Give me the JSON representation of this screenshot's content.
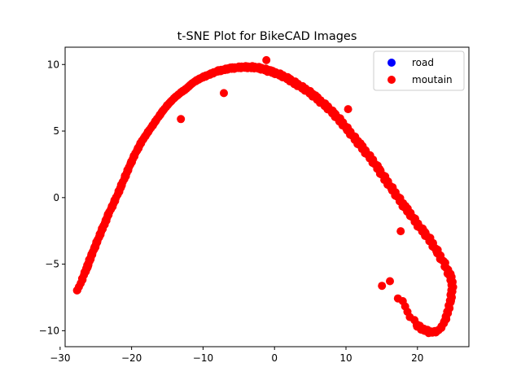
{
  "chart_data": {
    "type": "scatter",
    "title": "t-SNE Plot for BikeCAD Images",
    "xlabel": "",
    "ylabel": "",
    "xlim": [
      -29.3,
      27.2
    ],
    "ylim": [
      -11.2,
      11.3
    ],
    "xticks": [
      -30,
      -20,
      -10,
      0,
      10,
      20
    ],
    "xtick_labels": [
      "−30",
      "−20",
      "−10",
      "0",
      "10",
      "20"
    ],
    "yticks": [
      -10,
      -5,
      0,
      5,
      10
    ],
    "ytick_labels": [
      "−10",
      "−5",
      "0",
      "5",
      "10"
    ],
    "grid": false,
    "legend_position": "top-right",
    "series": [
      {
        "name": "road",
        "color": "#0000ff",
        "x": [],
        "y": []
      },
      {
        "name": "moutain",
        "color": "#ff0000",
        "x": [
          -27.5,
          -26.5,
          -26.2,
          -25.8,
          -25.2,
          -24.6,
          -23.9,
          -23.2,
          -22.4,
          -21.6,
          -20.8,
          -20.1,
          -19.3,
          -18.5,
          -17.6,
          -16.7,
          -15.8,
          -14.9,
          -14.0,
          -13.1,
          -12.3,
          -11.5,
          -10.6,
          -9.8,
          -8.9,
          -8.0,
          -7.1,
          -6.3,
          -5.5,
          -4.7,
          -3.9,
          -3.1,
          -2.3,
          -1.5,
          -0.7,
          0.2,
          1.1,
          2.0,
          2.9,
          3.8,
          4.7,
          5.6,
          6.5,
          7.4,
          8.3,
          9.2,
          10.1,
          11.0,
          11.9,
          12.8,
          13.7,
          14.6,
          15.5,
          16.4,
          17.3,
          18.2,
          19.1,
          20.0,
          20.9,
          21.8,
          22.7,
          23.6,
          24.5,
          24.9,
          24.8,
          24.6,
          24.3,
          23.9,
          23.3,
          22.6,
          21.7,
          20.8,
          19.9,
          17.4,
          17.7,
          16.1,
          14.9,
          -7.0,
          -13.1,
          10.2,
          -1.0
        ],
        "y": [
          -6.9,
          -5.6,
          -5.2,
          -4.6,
          -3.8,
          -3.0,
          -2.1,
          -1.2,
          -0.3,
          0.7,
          1.7,
          2.6,
          3.5,
          4.3,
          5.0,
          5.7,
          6.4,
          7.0,
          7.5,
          7.9,
          8.2,
          8.6,
          8.9,
          9.1,
          9.3,
          9.5,
          9.6,
          9.7,
          9.75,
          9.8,
          9.8,
          9.8,
          9.75,
          9.65,
          9.5,
          9.35,
          9.15,
          8.9,
          8.6,
          8.3,
          8.0,
          7.6,
          7.2,
          6.8,
          6.3,
          5.8,
          5.2,
          4.6,
          4.0,
          3.4,
          2.8,
          2.1,
          1.4,
          0.7,
          0.0,
          -0.7,
          -1.3,
          -2.0,
          -2.6,
          -3.2,
          -4.0,
          -4.8,
          -5.8,
          -6.5,
          -7.1,
          -7.8,
          -8.5,
          -9.2,
          -9.8,
          -10.1,
          -10.1,
          -9.9,
          -9.6,
          -7.5,
          -2.5,
          -6.3,
          -6.7,
          7.9,
          5.9,
          6.6,
          10.4
        ]
      }
    ]
  }
}
